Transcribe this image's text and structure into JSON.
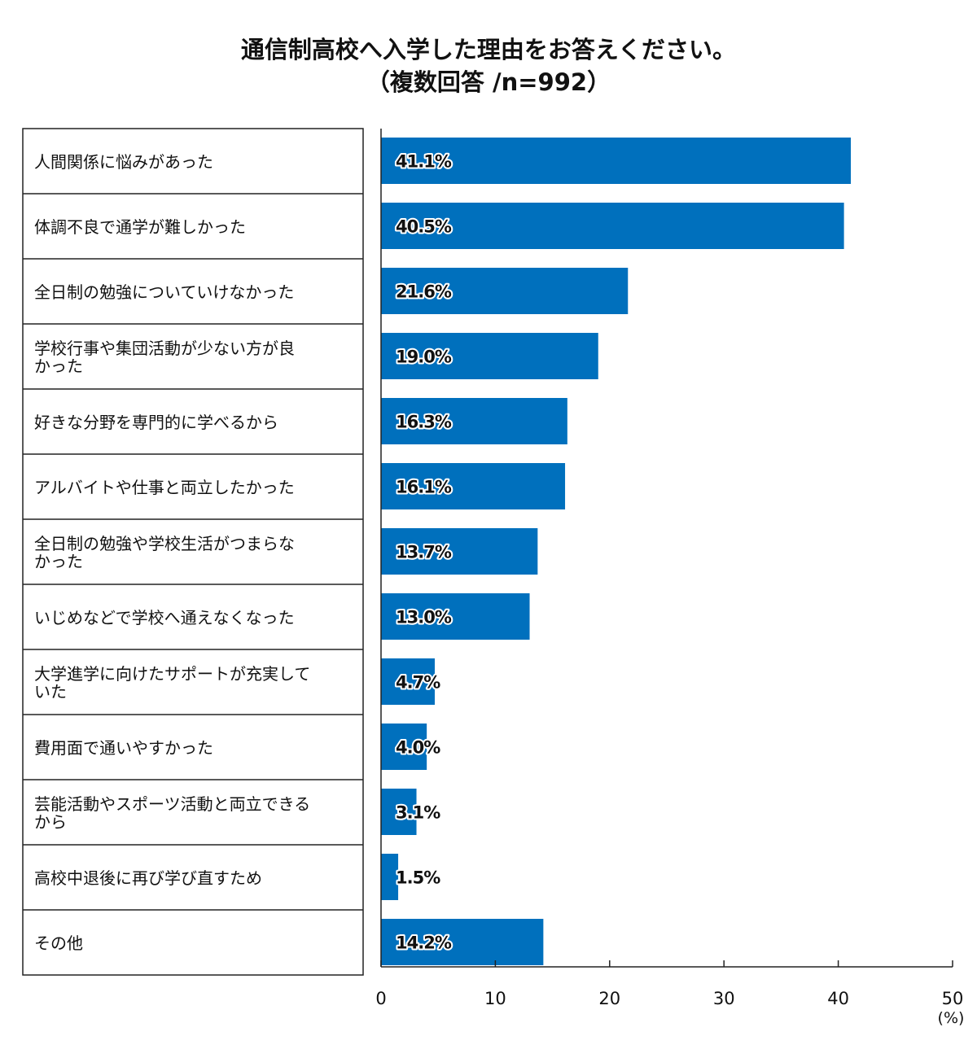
{
  "title_line1": "通信制高校へ入学した理由をお答えください。",
  "title_line2": "（複数回答 /n=992）",
  "colors": {
    "bar": "#0070BD",
    "axis": "#222222"
  },
  "chart_data": {
    "type": "bar",
    "orientation": "horizontal",
    "title": "通信制高校へ入学した理由をお答えください。（複数回答 /n=992）",
    "unit": "(%)",
    "xlim": [
      0,
      50
    ],
    "ticks": [
      0,
      10,
      20,
      30,
      40,
      50
    ],
    "categories": [
      [
        "人間関係に悩みがあった"
      ],
      [
        "体調不良で通学が難しかった"
      ],
      [
        "全日制の勉強についていけなかった"
      ],
      [
        "学校行事や集団活動が少ない方が良",
        "かった"
      ],
      [
        "好きな分野を専門的に学べるから"
      ],
      [
        "アルバイトや仕事と両立したかった"
      ],
      [
        "全日制の勉強や学校生活がつまらな",
        "かった"
      ],
      [
        "いじめなどで学校へ通えなくなった"
      ],
      [
        "大学進学に向けたサポートが充実して",
        "いた"
      ],
      [
        "費用面で通いやすかった"
      ],
      [
        "芸能活動やスポーツ活動と両立できる",
        "から"
      ],
      [
        "高校中退後に再び学び直すため"
      ],
      [
        "その他"
      ]
    ],
    "values": [
      41.1,
      40.5,
      21.6,
      19.0,
      16.3,
      16.1,
      13.7,
      13.0,
      4.7,
      4.0,
      3.1,
      1.5,
      14.2
    ],
    "value_labels": [
      "41.1%",
      "40.5%",
      "21.6%",
      "19.0%",
      "16.3%",
      "16.1%",
      "13.7%",
      "13.0%",
      "4.7%",
      "4.0%",
      "3.1%",
      "1.5%",
      "14.2%"
    ]
  }
}
